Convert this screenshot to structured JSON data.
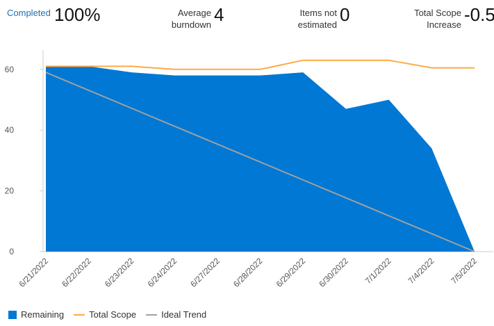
{
  "kpis": [
    {
      "label": "Completed",
      "value": "100%"
    },
    {
      "label": "Average burndown",
      "value": "4"
    },
    {
      "label": "Items not estimated",
      "value": "0"
    },
    {
      "label": "Total Scope Increase",
      "value": "-0.5"
    }
  ],
  "chart_data": {
    "type": "area",
    "categories": [
      "6/21/2022",
      "6/22/2022",
      "6/23/2022",
      "6/24/2022",
      "6/27/2022",
      "6/28/2022",
      "6/29/2022",
      "6/30/2022",
      "7/1/2022",
      "7/4/2022",
      "7/5/2022"
    ],
    "yticks": [
      0,
      20,
      40,
      60
    ],
    "ylim": [
      0,
      66
    ],
    "grid": false,
    "legend_placement": "bottom-left",
    "series": [
      {
        "name": "Remaining",
        "type": "area",
        "color": "#0078d4",
        "values": [
          61,
          61,
          59,
          58,
          58,
          58,
          59,
          47,
          50,
          34,
          0
        ]
      },
      {
        "name": "Total Scope",
        "type": "line",
        "color": "#ffaa44",
        "values": [
          61,
          61,
          61,
          60,
          60,
          60,
          63,
          63,
          63,
          60.5,
          60.5
        ]
      },
      {
        "name": "Ideal Trend",
        "type": "line",
        "color": "#a0a0a0",
        "values": [
          59,
          53.1,
          47.2,
          41.3,
          35.4,
          29.5,
          23.6,
          17.7,
          11.8,
          5.9,
          0
        ]
      }
    ]
  }
}
